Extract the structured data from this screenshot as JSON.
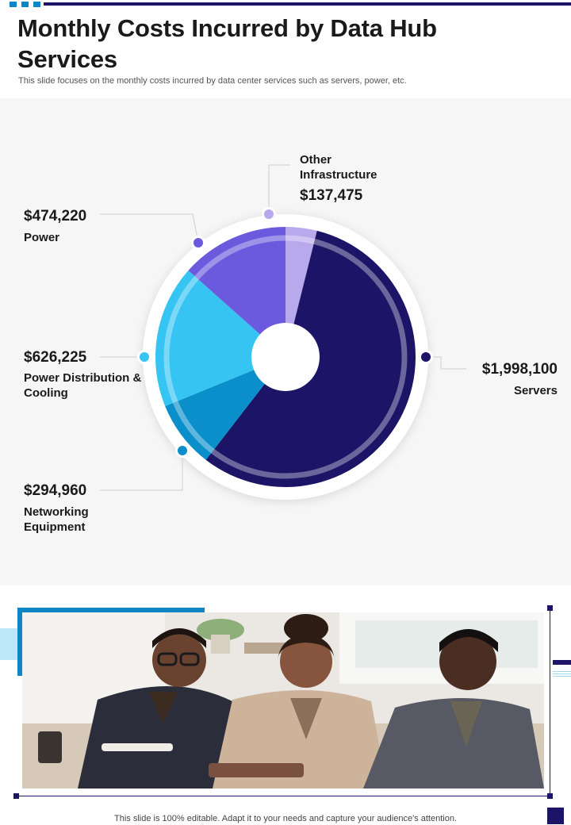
{
  "header": {
    "title": "Monthly Costs Incurred by Data Hub Services",
    "subtitle": "This slide focuses on the monthly costs incurred by data center services such as servers, power, etc."
  },
  "chart_data": {
    "type": "pie",
    "title": "Monthly Costs Incurred by Data Hub Services",
    "currency": "$",
    "slices": [
      {
        "label": "Other Infrastructure",
        "value": 137475,
        "display": "$137,475",
        "color": "#b8a8ec"
      },
      {
        "label": "Servers",
        "value": 1998100,
        "display": "$1,998,100",
        "color": "#1c1466"
      },
      {
        "label": "Networking Equipment",
        "value": 294960,
        "display": "$294,960",
        "color": "#0a8fcb"
      },
      {
        "label": "Power Distribution & Cooling",
        "value": 626225,
        "display": "$626,225",
        "color": "#36c4f3"
      },
      {
        "label": "Power",
        "value": 474220,
        "display": "$474,220",
        "color": "#6b59de"
      }
    ],
    "legend": "none",
    "grid": false
  },
  "labels": {
    "other_infra_name": "Other Infrastructure",
    "other_infra_value": "$137,475",
    "power_name": "Power",
    "power_value": "$474,220",
    "pdc_name": "Power Distribution & Cooling",
    "pdc_value": "$626,225",
    "networking_name": "Networking Equipment",
    "networking_value": "$294,960",
    "servers_name": "Servers",
    "servers_value": "$1,998,100"
  },
  "footer": {
    "text": "This slide is 100% editable. Adapt it to your needs and capture your audience's attention."
  }
}
